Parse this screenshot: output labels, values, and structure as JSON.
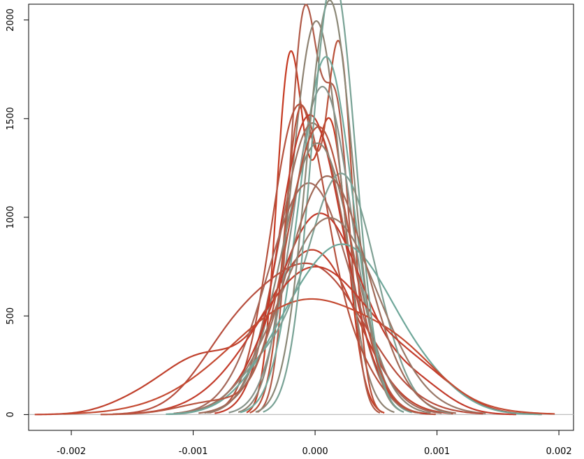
{
  "chart_data": {
    "type": "line",
    "title": "",
    "xlabel": "",
    "ylabel": "",
    "xlim": [
      -0.00235,
      0.00212
    ],
    "ylim": [
      -80,
      2080
    ],
    "x_ticks": [
      {
        "value": -0.002,
        "label": "-0.002"
      },
      {
        "value": -0.001,
        "label": "-0.001"
      },
      {
        "value": 0.0,
        "label": "0.000"
      },
      {
        "value": 0.001,
        "label": "0.001"
      },
      {
        "value": 0.002,
        "label": "0.002"
      }
    ],
    "y_ticks": [
      {
        "value": 0,
        "label": "0"
      },
      {
        "value": 500,
        "label": "500"
      },
      {
        "value": 1000,
        "label": "1000"
      },
      {
        "value": 1500,
        "label": "1500"
      },
      {
        "value": 2000,
        "label": "2000"
      }
    ],
    "baseline": {
      "value": 0,
      "color": "#bebebe"
    },
    "grid": false,
    "legend": "none",
    "series": [
      {
        "color": "#c0402c",
        "components": [
          {
            "mu": -2e-05,
            "sigma": 0.00036,
            "w": 0.75
          },
          {
            "mu": -0.00095,
            "sigma": 0.00032,
            "w": 0.22
          },
          {
            "mu": -0.0015,
            "sigma": 0.00025,
            "w": 0.03
          }
        ]
      },
      {
        "color": "#c53a22",
        "components": [
          {
            "mu": -0.00021,
            "sigma": 0.00011,
            "w": 0.48
          },
          {
            "mu": 0.00012,
            "sigma": 0.00014,
            "w": 0.52
          }
        ]
      },
      {
        "color": "#b05a48",
        "components": [
          {
            "mu": -9e-05,
            "sigma": 0.00012,
            "w": 0.6
          },
          {
            "mu": 0.00018,
            "sigma": 0.00011,
            "w": 0.4
          }
        ]
      },
      {
        "color": "#8e8272",
        "components": [
          {
            "mu": 1e-05,
            "sigma": 0.0002,
            "w": 1.0
          }
        ]
      },
      {
        "color": "#b9513a",
        "components": [
          {
            "mu": 0.0002,
            "sigma": 0.00011,
            "w": 0.5
          },
          {
            "mu": -0.00012,
            "sigma": 0.00013,
            "w": 0.5
          }
        ]
      },
      {
        "color": "#72a99c",
        "components": [
          {
            "mu": 9e-05,
            "sigma": 0.00022,
            "w": 1.0
          }
        ]
      },
      {
        "color": "#87938a",
        "components": [
          {
            "mu": 6e-05,
            "sigma": 0.00024,
            "w": 1.0
          }
        ]
      },
      {
        "color": "#b5523e",
        "components": [
          {
            "mu": -0.00013,
            "sigma": 0.00023,
            "w": 0.9
          },
          {
            "mu": 0.00035,
            "sigma": 0.0002,
            "w": 0.1
          }
        ]
      },
      {
        "color": "#a0705f",
        "components": [
          {
            "mu": -2e-05,
            "sigma": 0.00027,
            "w": 1.0
          }
        ]
      },
      {
        "color": "#c13b2a",
        "components": [
          {
            "mu": -0.00012,
            "sigma": 0.00022,
            "w": 0.55
          },
          {
            "mu": 0.00012,
            "sigma": 0.00025,
            "w": 0.45
          }
        ]
      },
      {
        "color": "#8d8677",
        "components": [
          {
            "mu": 2e-05,
            "sigma": 0.00029,
            "w": 1.0
          }
        ]
      },
      {
        "color": "#a5685a",
        "components": [
          {
            "mu": -5e-05,
            "sigma": 0.00034,
            "w": 1.0
          }
        ]
      },
      {
        "color": "#c23a2a",
        "components": [
          {
            "mu": 4e-05,
            "sigma": 0.00036,
            "w": 0.92
          },
          {
            "mu": 0.00085,
            "sigma": 0.00025,
            "w": 0.08
          }
        ]
      },
      {
        "color": "#7fa094",
        "components": [
          {
            "mu": 0.00022,
            "sigma": 0.00028,
            "w": 0.85
          },
          {
            "mu": -0.0004,
            "sigma": 0.00025,
            "w": 0.15
          }
        ]
      },
      {
        "color": "#9a7868",
        "components": [
          {
            "mu": 0.00012,
            "sigma": 0.0004,
            "w": 1.0
          }
        ]
      },
      {
        "color": "#b74e3e",
        "components": [
          {
            "mu": -3e-05,
            "sigma": 0.00044,
            "w": 0.82
          },
          {
            "mu": -0.0007,
            "sigma": 0.0003,
            "w": 0.18
          }
        ]
      },
      {
        "color": "#c33d2c",
        "components": [
          {
            "mu": 0.0,
            "sigma": 0.00048,
            "w": 0.9
          },
          {
            "mu": 0.0009,
            "sigma": 0.0003,
            "w": 0.1
          }
        ]
      },
      {
        "color": "#6fa79a",
        "components": [
          {
            "mu": 0.0003,
            "sigma": 0.00035,
            "w": 0.65
          },
          {
            "mu": -0.0002,
            "sigma": 0.00032,
            "w": 0.25
          },
          {
            "mu": 0.0009,
            "sigma": 0.0003,
            "w": 0.1
          }
        ]
      },
      {
        "color": "#c44a32",
        "components": [
          {
            "mu": -5e-05,
            "sigma": 0.00063,
            "w": 0.92
          },
          {
            "mu": 0.00075,
            "sigma": 0.0003,
            "w": 0.08
          }
        ]
      },
      {
        "color": "#8b8877",
        "components": [
          {
            "mu": 0.00012,
            "sigma": 0.00019,
            "w": 1.0
          }
        ]
      },
      {
        "color": "#78a295",
        "components": [
          {
            "mu": 0.00015,
            "sigma": 0.00018,
            "w": 1.0
          }
        ]
      },
      {
        "color": "#b85540",
        "components": [
          {
            "mu": 3e-05,
            "sigma": 0.00026,
            "w": 0.95
          },
          {
            "mu": -0.0008,
            "sigma": 0.0003,
            "w": 0.05
          }
        ]
      },
      {
        "color": "#a06a58",
        "components": [
          {
            "mu": 0.0001,
            "sigma": 0.00033,
            "w": 1.0
          }
        ]
      }
    ]
  }
}
